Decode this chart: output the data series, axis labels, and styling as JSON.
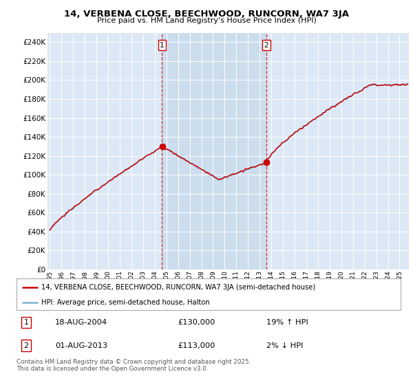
{
  "title": "14, VERBENA CLOSE, BEECHWOOD, RUNCORN, WA7 3JA",
  "subtitle": "Price paid vs. HM Land Registry's House Price Index (HPI)",
  "legend_line1": "14, VERBENA CLOSE, BEECHWOOD, RUNCORN, WA7 3JA (semi-detached house)",
  "legend_line2": "HPI: Average price, semi-detached house, Halton",
  "footer": "Contains HM Land Registry data © Crown copyright and database right 2025.\nThis data is licensed under the Open Government Licence v3.0.",
  "marker1_date": "18-AUG-2004",
  "marker1_price": "£130,000",
  "marker1_hpi": "19% ↑ HPI",
  "marker2_date": "01-AUG-2013",
  "marker2_price": "£113,000",
  "marker2_hpi": "2% ↓ HPI",
  "ylim": [
    0,
    250000
  ],
  "yticks": [
    0,
    20000,
    40000,
    60000,
    80000,
    100000,
    120000,
    140000,
    160000,
    180000,
    200000,
    220000,
    240000
  ],
  "background_color": "#dce8f5",
  "shaded_color": "#ccdded",
  "line1_color": "#cc0000",
  "line2_color": "#7ab0d4",
  "vline_color": "#cc0000",
  "marker1_x": 2004.63,
  "marker2_x": 2013.58,
  "xmin": 1994.8,
  "xmax": 2025.8
}
